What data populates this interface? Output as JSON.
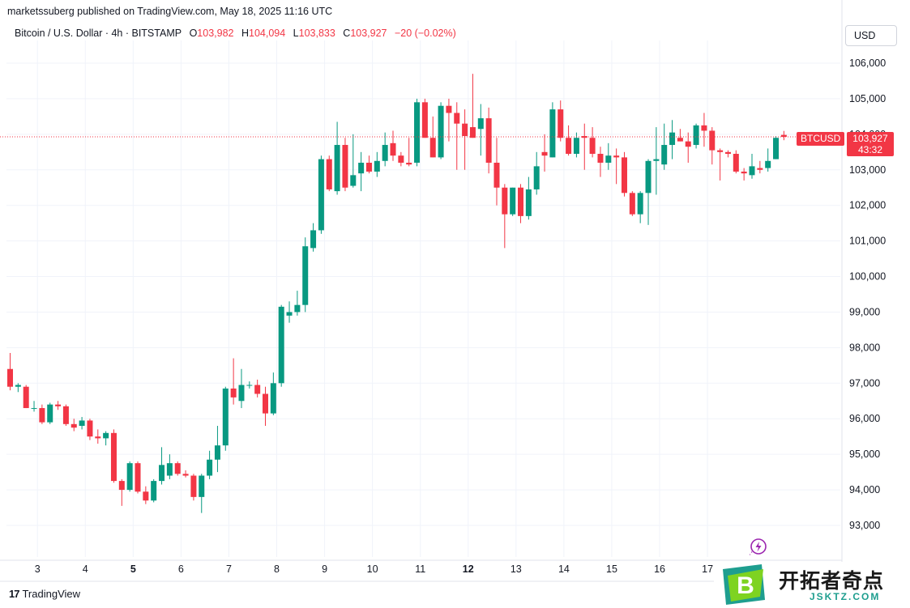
{
  "byline": "marketssuberg published on TradingView.com, May 18, 2025 11:16 UTC",
  "legend": {
    "symbol": "Bitcoin / U.S. Dollar · 4h · BITSTAMP",
    "open_label": "O",
    "open": "103,982",
    "high_label": "H",
    "high": "104,094",
    "low_label": "L",
    "low": "103,833",
    "close_label": "C",
    "close": "103,927",
    "change": "−20 (−0.02%)"
  },
  "currency_button": "USD",
  "price_tag": {
    "symbol": "BTCUSD",
    "price": "103,927",
    "countdown": "43:32"
  },
  "footer": {
    "brand": "TradingView",
    "mark": "17"
  },
  "watermark": {
    "title": "开拓者奇点",
    "domain": "JSKTZ.COM",
    "logo_letter": "B"
  },
  "colors": {
    "up": "#089981",
    "down": "#f23645",
    "grid": "#f0f3fa",
    "axis_text": "#131722"
  },
  "chart_data": {
    "type": "candlestick",
    "interval": "4h",
    "ylim": [
      92300,
      106700
    ],
    "yticks": [
      93000,
      94000,
      95000,
      96000,
      97000,
      98000,
      99000,
      100000,
      101000,
      102000,
      103000,
      104000,
      105000,
      106000
    ],
    "ytick_labels": [
      "93,000",
      "94,000",
      "95,000",
      "96,000",
      "97,000",
      "98,000",
      "99,000",
      "100,000",
      "101,000",
      "102,000",
      "103,000",
      "104,000",
      "105,000",
      "106,000"
    ],
    "xticks": [
      {
        "label": "3",
        "idx": 2,
        "bold": false
      },
      {
        "label": "4",
        "idx": 8,
        "bold": false
      },
      {
        "label": "5",
        "idx": 14,
        "bold": true
      },
      {
        "label": "6",
        "idx": 20,
        "bold": false
      },
      {
        "label": "7",
        "idx": 26,
        "bold": false
      },
      {
        "label": "8",
        "idx": 32,
        "bold": false
      },
      {
        "label": "9",
        "idx": 38,
        "bold": false
      },
      {
        "label": "10",
        "idx": 44,
        "bold": false
      },
      {
        "label": "11",
        "idx": 50,
        "bold": false
      },
      {
        "label": "12",
        "idx": 56,
        "bold": true
      },
      {
        "label": "13",
        "idx": 62,
        "bold": false
      },
      {
        "label": "14",
        "idx": 68,
        "bold": false
      },
      {
        "label": "15",
        "idx": 74,
        "bold": false
      },
      {
        "label": "16",
        "idx": 80,
        "bold": false
      },
      {
        "label": "17",
        "idx": 86,
        "bold": false
      }
    ],
    "last_price": 103927,
    "candles": [
      [
        97400,
        97850,
        96800,
        96900
      ],
      [
        96900,
        97000,
        96750,
        96950
      ],
      [
        96900,
        96950,
        96300,
        96300
      ],
      [
        96300,
        96500,
        96200,
        96300
      ],
      [
        96300,
        96400,
        95850,
        95900
      ],
      [
        95900,
        96450,
        95850,
        96400
      ],
      [
        96400,
        96500,
        96250,
        96350
      ],
      [
        96350,
        96400,
        95800,
        95850
      ],
      [
        95850,
        96000,
        95650,
        95750
      ],
      [
        95800,
        96050,
        95700,
        95950
      ],
      [
        95950,
        96000,
        95400,
        95500
      ],
      [
        95500,
        95700,
        95300,
        95450
      ],
      [
        95450,
        95650,
        95250,
        95600
      ],
      [
        95600,
        95700,
        94200,
        94250
      ],
      [
        94250,
        94300,
        93550,
        94000
      ],
      [
        94000,
        94800,
        93950,
        94750
      ],
      [
        94750,
        94800,
        93900,
        93950
      ],
      [
        93950,
        94100,
        93600,
        93700
      ],
      [
        93700,
        94300,
        93650,
        94250
      ],
      [
        94250,
        95200,
        94150,
        94700
      ],
      [
        94400,
        95000,
        94300,
        94750
      ],
      [
        94750,
        94800,
        94400,
        94450
      ],
      [
        94450,
        94550,
        94350,
        94400
      ],
      [
        94400,
        94450,
        93700,
        93800
      ],
      [
        93800,
        94450,
        93350,
        94400
      ],
      [
        94400,
        95100,
        94300,
        94850
      ],
      [
        94850,
        95800,
        94500,
        95250
      ],
      [
        95250,
        96900,
        95100,
        96850
      ],
      [
        96850,
        97700,
        96400,
        96600
      ],
      [
        96500,
        97400,
        96300,
        96950
      ],
      [
        96950,
        97050,
        96850,
        96950
      ],
      [
        96950,
        97100,
        96600,
        96700
      ],
      [
        96700,
        96900,
        95800,
        96150
      ],
      [
        96150,
        97300,
        96100,
        97000
      ],
      [
        97000,
        99200,
        96900,
        99150
      ],
      [
        98900,
        99300,
        98700,
        99000
      ],
      [
        99000,
        99600,
        98900,
        99200
      ],
      [
        99200,
        101100,
        99000,
        100850
      ],
      [
        100800,
        101500,
        100700,
        101300
      ],
      [
        101300,
        103400,
        101200,
        103300
      ],
      [
        103300,
        103400,
        102400,
        102450
      ],
      [
        102400,
        104350,
        102300,
        103700
      ],
      [
        103700,
        103900,
        102400,
        102500
      ],
      [
        102550,
        104000,
        102500,
        102850
      ],
      [
        102900,
        103500,
        102400,
        103200
      ],
      [
        103200,
        103400,
        102900,
        102950
      ],
      [
        102950,
        103500,
        102800,
        103250
      ],
      [
        103250,
        104050,
        103100,
        103700
      ],
      [
        103750,
        104100,
        103250,
        103400
      ],
      [
        103400,
        103500,
        103100,
        103200
      ],
      [
        103200,
        103900,
        103100,
        103150
      ],
      [
        103200,
        105000,
        103100,
        104900
      ],
      [
        104900,
        105000,
        103900,
        103900
      ],
      [
        103900,
        104500,
        103350,
        103350
      ],
      [
        103350,
        104900,
        103300,
        104800
      ],
      [
        104800,
        105000,
        103800,
        104600
      ],
      [
        104600,
        104900,
        103000,
        104300
      ],
      [
        104300,
        104700,
        103000,
        103950
      ],
      [
        104200,
        105700,
        103900,
        103900
      ],
      [
        104150,
        104850,
        103400,
        104450
      ],
      [
        104450,
        104750,
        102900,
        103200
      ],
      [
        103200,
        103900,
        102000,
        102500
      ],
      [
        102500,
        102600,
        100800,
        101750
      ],
      [
        101750,
        102500,
        101700,
        102500
      ],
      [
        102500,
        102600,
        101500,
        101700
      ],
      [
        101700,
        102800,
        101600,
        102450
      ],
      [
        102450,
        103500,
        102300,
        103100
      ],
      [
        103500,
        104000,
        102950,
        103400
      ],
      [
        103350,
        104900,
        103350,
        104700
      ],
      [
        104700,
        104950,
        103800,
        103900
      ],
      [
        103900,
        104250,
        103400,
        103450
      ],
      [
        103450,
        104050,
        103350,
        103900
      ],
      [
        103950,
        104300,
        103000,
        103900
      ],
      [
        103900,
        104200,
        103350,
        103450
      ],
      [
        103450,
        103650,
        102800,
        103200
      ],
      [
        103200,
        103750,
        103000,
        103400
      ],
      [
        103400,
        103600,
        102600,
        103350
      ],
      [
        103350,
        103500,
        102250,
        102350
      ],
      [
        102350,
        102400,
        101700,
        101750
      ],
      [
        101750,
        102400,
        101500,
        102350
      ],
      [
        102350,
        103300,
        101450,
        103250
      ],
      [
        103250,
        104200,
        102300,
        103300
      ],
      [
        103150,
        104300,
        103000,
        103700
      ],
      [
        103700,
        104400,
        103300,
        104050
      ],
      [
        103900,
        104150,
        103800,
        103800
      ],
      [
        103800,
        104050,
        103200,
        103650
      ],
      [
        103700,
        104300,
        103600,
        104250
      ],
      [
        104250,
        104600,
        103650,
        104100
      ],
      [
        104100,
        104200,
        103150,
        103550
      ],
      [
        103550,
        103600,
        102700,
        103500
      ],
      [
        103500,
        103550,
        103350,
        103450
      ],
      [
        103450,
        103550,
        102900,
        102950
      ],
      [
        102950,
        103050,
        102700,
        102900
      ],
      [
        102850,
        103450,
        102750,
        103100
      ],
      [
        103050,
        103250,
        102900,
        103000
      ],
      [
        103050,
        103600,
        102950,
        103250
      ],
      [
        103300,
        103950,
        103300,
        103900
      ],
      [
        103982,
        104094,
        103833,
        103927
      ]
    ]
  }
}
